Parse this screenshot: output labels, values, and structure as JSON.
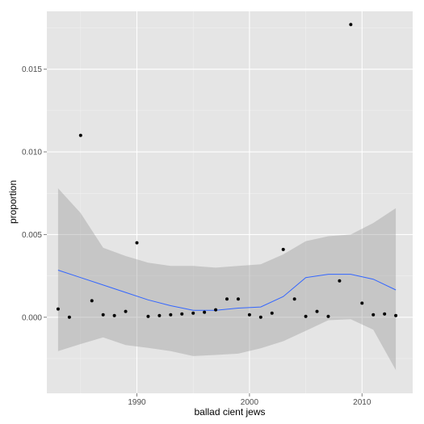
{
  "chart_data": {
    "type": "scatter",
    "title": "",
    "xlabel": "ballad cient jews",
    "ylabel": "proportion",
    "xlim": [
      1982,
      2014.5
    ],
    "ylim": [
      -0.0046,
      0.0185
    ],
    "x_ticks": [
      1990,
      2000,
      2010
    ],
    "x_tick_labels": [
      "1990",
      "2000",
      "2010"
    ],
    "y_ticks": [
      0.0,
      0.005,
      0.01,
      0.015
    ],
    "y_tick_labels": [
      "0.000",
      "0.005",
      "0.010",
      "0.015"
    ],
    "grid": true,
    "panel_background": "#e5e5e5",
    "grid_color": "#ffffff",
    "point_color": "#000000",
    "smooth_color": "#3366ff",
    "ribbon_color": "#999999",
    "points": {
      "x": [
        1983,
        1984,
        1985,
        1986,
        1987,
        1988,
        1989,
        1990,
        1991,
        1992,
        1993,
        1994,
        1995,
        1996,
        1997,
        1998,
        1999,
        2000,
        2001,
        2002,
        2003,
        2004,
        2005,
        2006,
        2007,
        2008,
        2009,
        2010,
        2011,
        2012,
        2013
      ],
      "y": [
        0.0005,
        0.0,
        0.011,
        0.001,
        0.00015,
        0.0001,
        0.00035,
        0.0045,
        5e-05,
        0.0001,
        0.00015,
        0.0002,
        0.00025,
        0.0003,
        0.00045,
        0.0011,
        0.0011,
        0.00015,
        0.0,
        0.00025,
        0.0041,
        0.0011,
        5e-05,
        0.00035,
        5e-05,
        0.0022,
        0.0177,
        0.00085,
        0.00015,
        0.0002,
        0.0001
      ]
    },
    "smooth": {
      "x": [
        1983,
        1985,
        1987,
        1989,
        1991,
        1993,
        1995,
        1997,
        1999,
        2001,
        2003,
        2005,
        2007,
        2009,
        2011,
        2013
      ],
      "y": [
        0.00285,
        0.0024,
        0.00195,
        0.0015,
        0.00105,
        0.0007,
        0.00042,
        0.00042,
        0.00055,
        0.00062,
        0.00125,
        0.0024,
        0.0026,
        0.0026,
        0.0023,
        0.00165
      ],
      "lower": [
        -0.00205,
        -0.00162,
        -0.00122,
        -0.00168,
        -0.00185,
        -0.00205,
        -0.00235,
        -0.00228,
        -0.0022,
        -0.00188,
        -0.00145,
        -0.00082,
        -0.00018,
        -0.00012,
        -0.00075,
        -0.0032
      ],
      "upper": [
        0.0078,
        0.0063,
        0.0042,
        0.0037,
        0.0033,
        0.0031,
        0.0031,
        0.003,
        0.0031,
        0.0032,
        0.0038,
        0.0046,
        0.0049,
        0.005,
        0.0057,
        0.0066
      ]
    }
  }
}
